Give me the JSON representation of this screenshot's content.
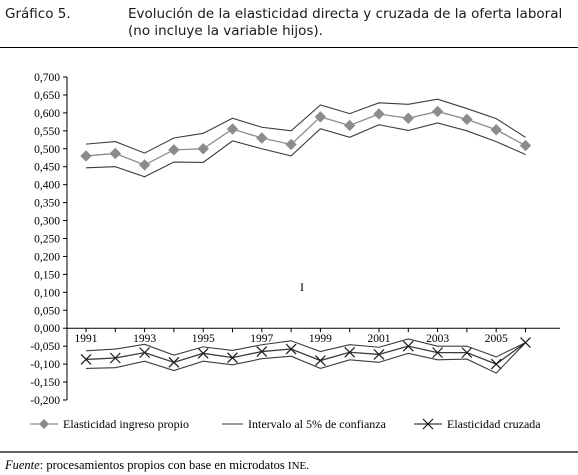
{
  "header": {
    "label": "Gráfico 5.",
    "title": "Evolución de la elasticidad directa y cruzada de la oferta laboral (no incluye la variable hijos)."
  },
  "footer": {
    "source_label": "Fuente",
    "source_text": ": procesamientos propios con base en microdatos ",
    "source_org": "INE."
  },
  "chart_data": {
    "type": "line",
    "title": "",
    "xlabel": "",
    "ylabel": "",
    "ylim": [
      -0.2,
      0.7
    ],
    "yticks": [
      0.7,
      0.65,
      0.6,
      0.55,
      0.5,
      0.45,
      0.4,
      0.35,
      0.3,
      0.25,
      0.2,
      0.15,
      0.1,
      0.05,
      0.0,
      -0.05,
      -0.1,
      -0.15,
      -0.2
    ],
    "ytick_labels": [
      "0,700",
      "0,650",
      "0,600",
      "0,550",
      "0,500",
      "0,450",
      "0,400",
      "0,350",
      "0,300",
      "0,250",
      "0,200",
      "0,150",
      "0,100",
      "0,050",
      "0,000",
      "-0,050",
      "-0,100",
      "-0,150",
      "-0,200"
    ],
    "x": [
      "1991",
      "1992",
      "1993",
      "1994",
      "1995",
      "1996",
      "1997",
      "1998",
      "1999",
      "2000",
      "2001",
      "2002",
      "2003",
      "2004",
      "2005",
      "2006"
    ],
    "xtick_labels_shown": [
      "1991",
      "1993",
      "1995",
      "1997",
      "1999",
      "2001",
      "2003",
      "2005"
    ],
    "grid": false,
    "legend_position": "bottom",
    "annotation": "I",
    "series": [
      {
        "name": "Elasticidad ingreso propio",
        "marker": "diamond",
        "color": "#8c8c8c",
        "values": [
          0.48,
          0.487,
          0.455,
          0.497,
          0.5,
          0.555,
          0.53,
          0.512,
          0.589,
          0.565,
          0.597,
          0.585,
          0.604,
          0.582,
          0.553,
          0.509
        ]
      },
      {
        "name": "Intervalo al 5% de confianza",
        "marker": "none",
        "color": "#3c3c3c",
        "values": [
          0.513,
          0.52,
          0.488,
          0.53,
          0.543,
          0.585,
          0.56,
          0.55,
          0.622,
          0.598,
          0.628,
          0.624,
          0.638,
          0.612,
          0.584,
          0.532
        ]
      },
      {
        "name": "",
        "marker": "none",
        "color": "#3c3c3c",
        "values": [
          0.447,
          0.45,
          0.422,
          0.463,
          0.462,
          0.522,
          0.5,
          0.48,
          0.556,
          0.532,
          0.567,
          0.551,
          0.572,
          0.55,
          0.52,
          0.484
        ]
      },
      {
        "name": "Elasticidad cruzada",
        "marker": "x",
        "color": "#3c3c3c",
        "values": [
          -0.087,
          -0.083,
          -0.068,
          -0.095,
          -0.07,
          -0.082,
          -0.065,
          -0.058,
          -0.09,
          -0.067,
          -0.073,
          -0.05,
          -0.068,
          -0.068,
          -0.1,
          -0.04
        ]
      },
      {
        "name": "",
        "marker": "none",
        "color": "#3c3c3c",
        "values": [
          -0.063,
          -0.058,
          -0.045,
          -0.075,
          -0.052,
          -0.062,
          -0.046,
          -0.035,
          -0.065,
          -0.046,
          -0.053,
          -0.03,
          -0.05,
          -0.05,
          -0.08,
          -0.04
        ]
      },
      {
        "name": "",
        "marker": "none",
        "color": "#3c3c3c",
        "values": [
          -0.112,
          -0.11,
          -0.092,
          -0.118,
          -0.092,
          -0.102,
          -0.085,
          -0.078,
          -0.112,
          -0.088,
          -0.095,
          -0.07,
          -0.088,
          -0.086,
          -0.125,
          -0.04
        ]
      }
    ]
  }
}
